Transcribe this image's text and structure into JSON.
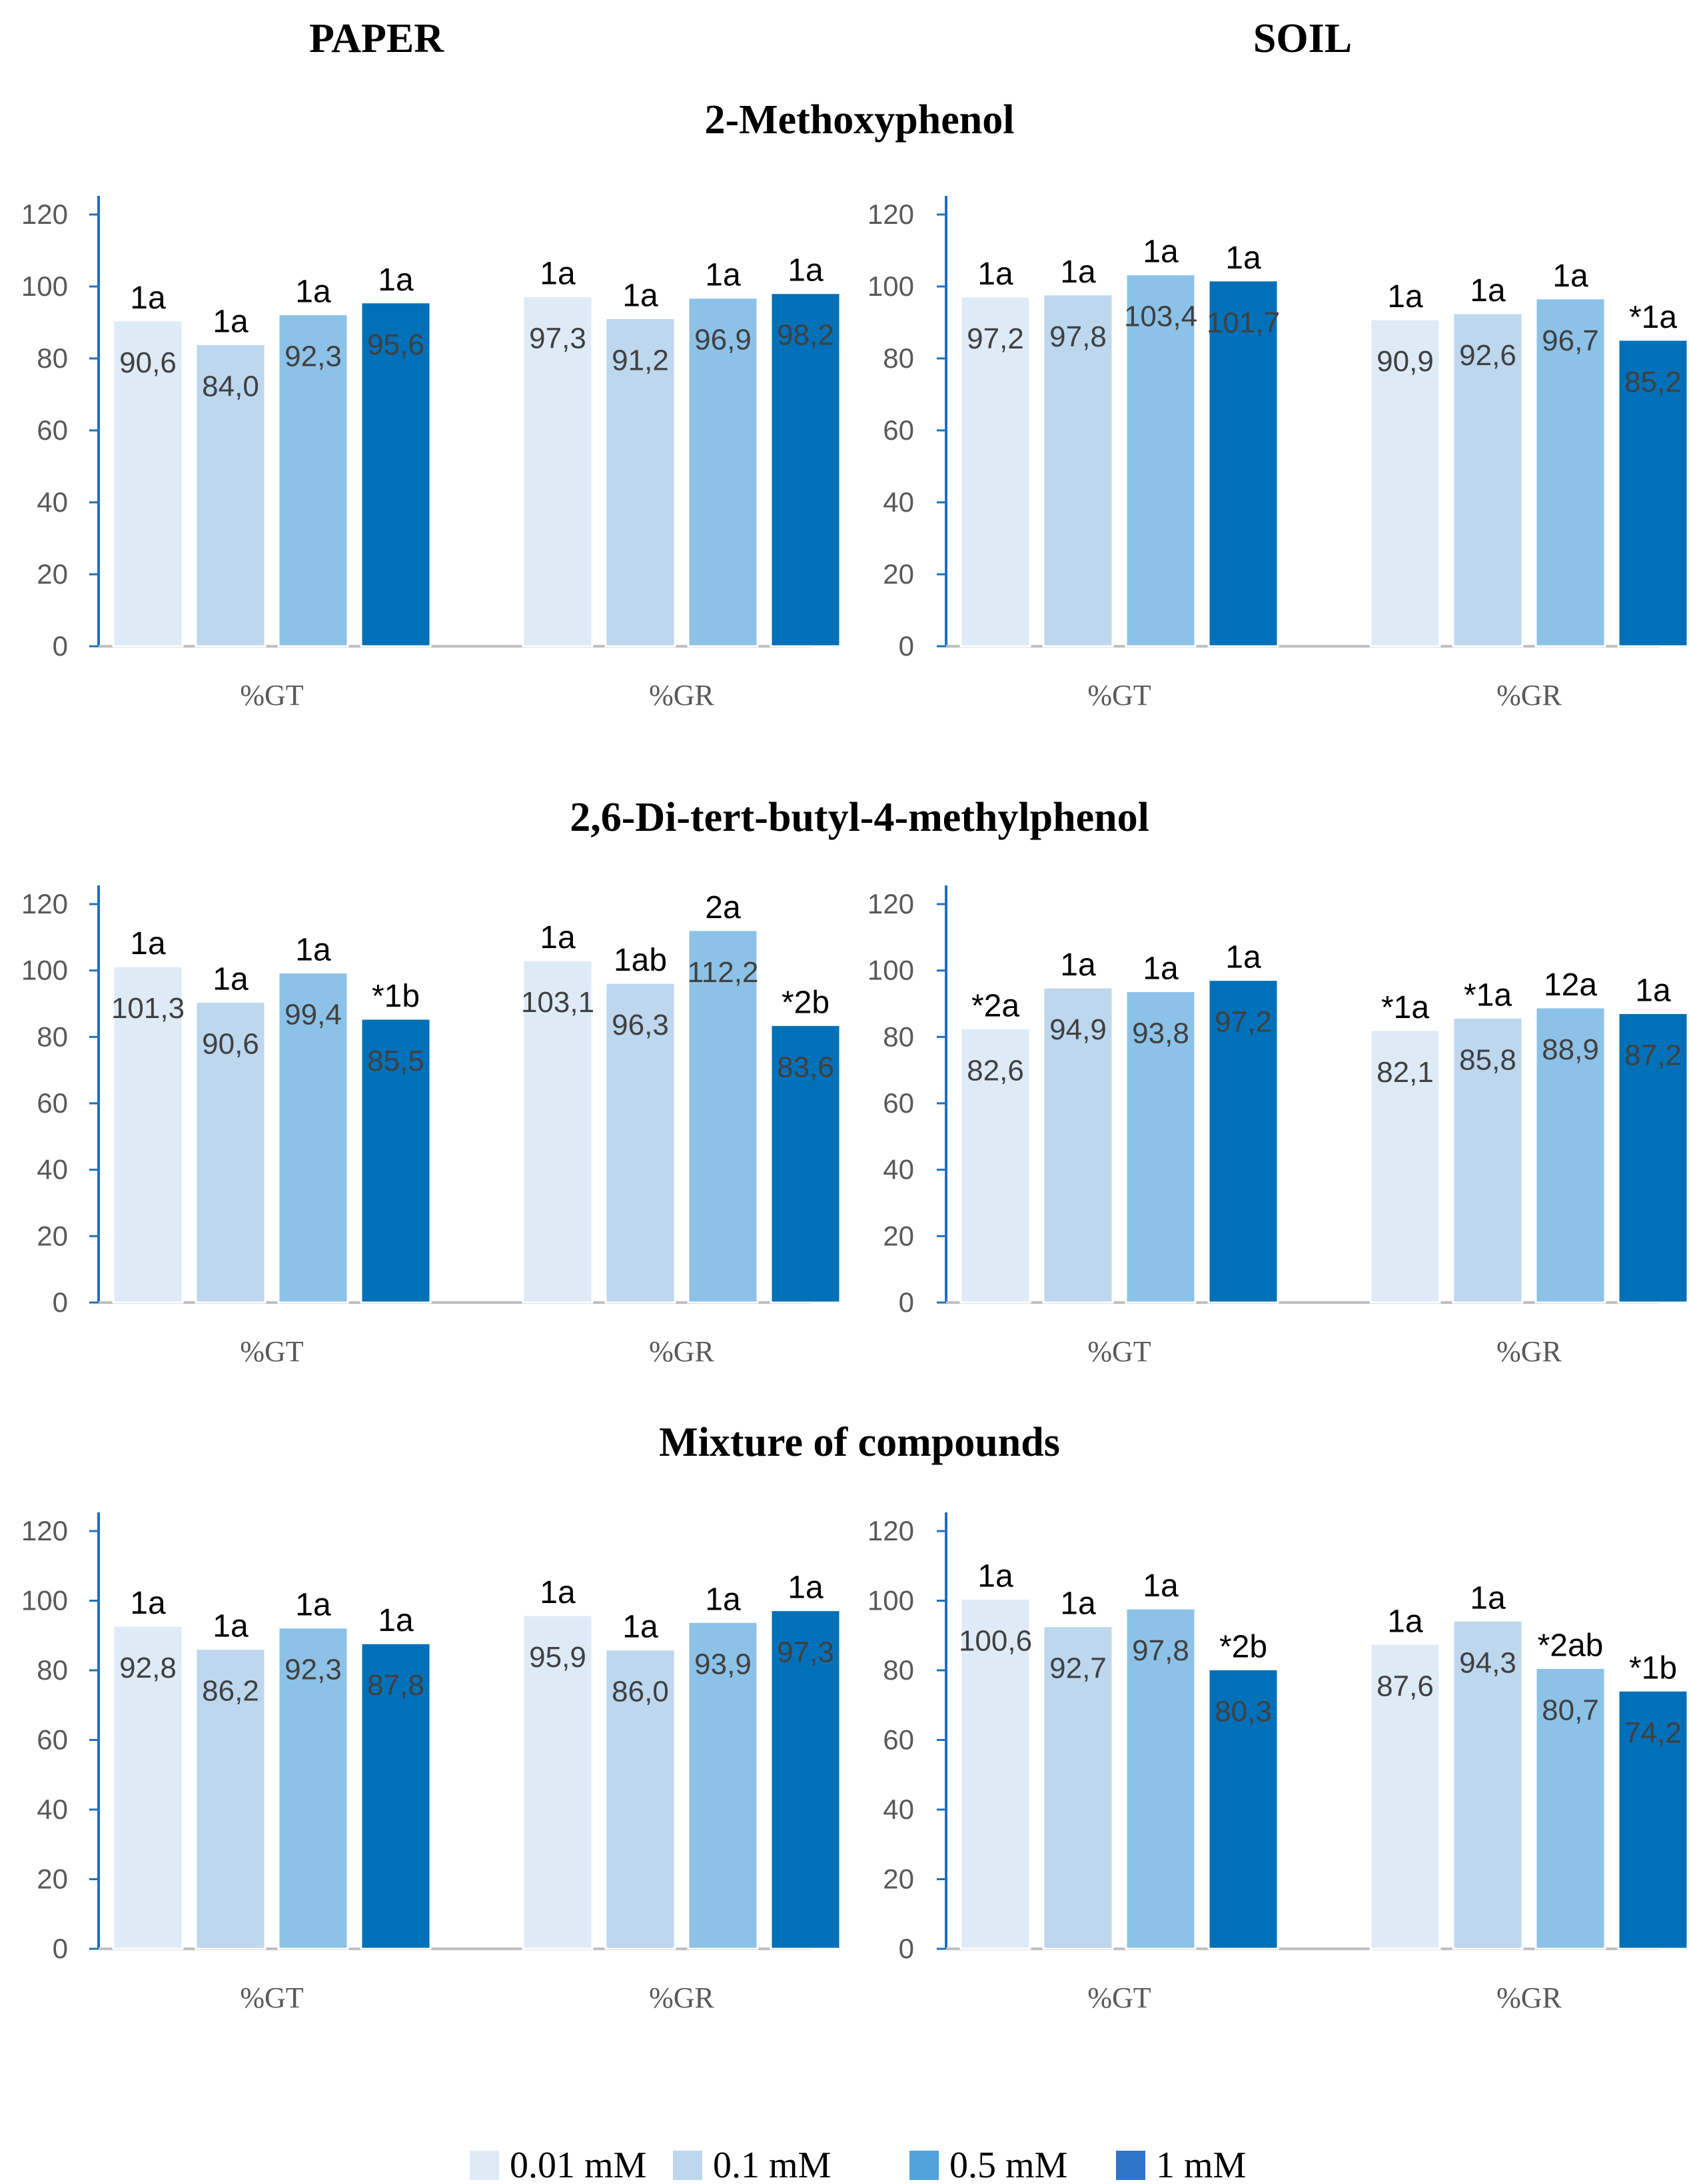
{
  "columns": {
    "left": "PAPER",
    "right": "SOIL"
  },
  "legend": [
    {
      "label": "0.01 mM",
      "color": "#deebf7"
    },
    {
      "label": "0.1 mM",
      "color": "#bdd7ee"
    },
    {
      "label": "0.5 mM",
      "color": "#4fa3da"
    },
    {
      "label": "1 mM",
      "color": "#2e75c9"
    }
  ],
  "bar_colors": [
    "#deebf7",
    "#bdd7ee",
    "#8cc2e8",
    "#0070b8"
  ],
  "chart_data": [
    {
      "type": "bar",
      "row_title": "2-Methoxyphenol",
      "panel": "PAPER",
      "categories": [
        "%GT",
        "%GR"
      ],
      "ylim": [
        0,
        120
      ],
      "yticks": [
        0,
        20,
        40,
        60,
        80,
        100,
        120
      ],
      "series": [
        {
          "name": "0.01 mM",
          "values": [
            90.6,
            97.3
          ],
          "labels": [
            "90,6",
            "97,3"
          ],
          "sig": [
            "1a",
            "1a"
          ]
        },
        {
          "name": "0.1 mM",
          "values": [
            84.0,
            91.2
          ],
          "labels": [
            "84,0",
            "91,2"
          ],
          "sig": [
            "1a",
            "1a"
          ]
        },
        {
          "name": "0.5 mM",
          "values": [
            92.3,
            96.9
          ],
          "labels": [
            "92,3",
            "96,9"
          ],
          "sig": [
            "1a",
            "1a"
          ]
        },
        {
          "name": "1 mM",
          "values": [
            95.6,
            98.2
          ],
          "labels": [
            "95,6",
            "98,2"
          ],
          "sig": [
            "1a",
            "1a"
          ]
        }
      ]
    },
    {
      "type": "bar",
      "row_title": "2-Methoxyphenol",
      "panel": "SOIL",
      "categories": [
        "%GT",
        "%GR"
      ],
      "ylim": [
        0,
        120
      ],
      "yticks": [
        0,
        20,
        40,
        60,
        80,
        100,
        120
      ],
      "series": [
        {
          "name": "0.01 mM",
          "values": [
            97.2,
            90.9
          ],
          "labels": [
            "97,2",
            "90,9"
          ],
          "sig": [
            "1a",
            "1a"
          ]
        },
        {
          "name": "0.1 mM",
          "values": [
            97.8,
            92.6
          ],
          "labels": [
            "97,8",
            "92,6"
          ],
          "sig": [
            "1a",
            "1a"
          ]
        },
        {
          "name": "0.5 mM",
          "values": [
            103.4,
            96.7
          ],
          "labels": [
            "103,4",
            "96,7"
          ],
          "sig": [
            "1a",
            "1a"
          ]
        },
        {
          "name": "1 mM",
          "values": [
            101.7,
            85.2
          ],
          "labels": [
            "101,7",
            "85,2"
          ],
          "sig": [
            "1a",
            "*1a"
          ]
        }
      ]
    },
    {
      "type": "bar",
      "row_title": "2,6-Di-tert-butyl-4-methylphenol",
      "panel": "PAPER",
      "categories": [
        "%GT",
        "%GR"
      ],
      "ylim": [
        0,
        120
      ],
      "yticks": [
        0,
        20,
        40,
        60,
        80,
        100,
        120
      ],
      "series": [
        {
          "name": "0.01 mM",
          "values": [
            101.3,
            103.1
          ],
          "labels": [
            "101,3",
            "103,1"
          ],
          "sig": [
            "1a",
            "1a"
          ]
        },
        {
          "name": "0.1 mM",
          "values": [
            90.6,
            96.3
          ],
          "labels": [
            "90,6",
            "96,3"
          ],
          "sig": [
            "1a",
            "1ab"
          ]
        },
        {
          "name": "0.5 mM",
          "values": [
            99.4,
            112.2
          ],
          "labels": [
            "99,4",
            "112,2"
          ],
          "sig": [
            "1a",
            "2a"
          ]
        },
        {
          "name": "1 mM",
          "values": [
            85.5,
            83.6
          ],
          "labels": [
            "85,5",
            "83,6"
          ],
          "sig": [
            "*1b",
            "*2b"
          ]
        }
      ]
    },
    {
      "type": "bar",
      "row_title": "2,6-Di-tert-butyl-4-methylphenol",
      "panel": "SOIL",
      "categories": [
        "%GT",
        "%GR"
      ],
      "ylim": [
        0,
        120
      ],
      "yticks": [
        0,
        20,
        40,
        60,
        80,
        100,
        120
      ],
      "series": [
        {
          "name": "0.01 mM",
          "values": [
            82.6,
            82.1
          ],
          "labels": [
            "82,6",
            "82,1"
          ],
          "sig": [
            "*2a",
            "*1a"
          ]
        },
        {
          "name": "0.1 mM",
          "values": [
            94.9,
            85.8
          ],
          "labels": [
            "94,9",
            "85,8"
          ],
          "sig": [
            "1a",
            "*1a"
          ]
        },
        {
          "name": "0.5 mM",
          "values": [
            93.8,
            88.9
          ],
          "labels": [
            "93,8",
            "88,9"
          ],
          "sig": [
            "1a",
            "12a"
          ]
        },
        {
          "name": "1 mM",
          "values": [
            97.2,
            87.2
          ],
          "labels": [
            "97,2",
            "87,2"
          ],
          "sig": [
            "1a",
            "1a"
          ]
        }
      ]
    },
    {
      "type": "bar",
      "row_title": "Mixture of compounds",
      "panel": "PAPER",
      "categories": [
        "%GT",
        "%GR"
      ],
      "ylim": [
        0,
        120
      ],
      "yticks": [
        0,
        20,
        40,
        60,
        80,
        100,
        120
      ],
      "series": [
        {
          "name": "0.01 mM",
          "values": [
            92.8,
            95.9
          ],
          "labels": [
            "92,8",
            "95,9"
          ],
          "sig": [
            "1a",
            "1a"
          ]
        },
        {
          "name": "0.1 mM",
          "values": [
            86.2,
            86.0
          ],
          "labels": [
            "86,2",
            "86,0"
          ],
          "sig": [
            "1a",
            "1a"
          ]
        },
        {
          "name": "0.5 mM",
          "values": [
            92.3,
            93.9
          ],
          "labels": [
            "92,3",
            "93,9"
          ],
          "sig": [
            "1a",
            "1a"
          ]
        },
        {
          "name": "1 mM",
          "values": [
            87.8,
            97.3
          ],
          "labels": [
            "87,8",
            "97,3"
          ],
          "sig": [
            "1a",
            "1a"
          ]
        }
      ]
    },
    {
      "type": "bar",
      "row_title": "Mixture of compounds",
      "panel": "SOIL",
      "categories": [
        "%GT",
        "%GR"
      ],
      "ylim": [
        0,
        120
      ],
      "yticks": [
        0,
        20,
        40,
        60,
        80,
        100,
        120
      ],
      "series": [
        {
          "name": "0.01 mM",
          "values": [
            100.6,
            87.6
          ],
          "labels": [
            "100,6",
            "87,6"
          ],
          "sig": [
            "1a",
            "1a"
          ]
        },
        {
          "name": "0.1 mM",
          "values": [
            92.7,
            94.3
          ],
          "labels": [
            "92,7",
            "94,3"
          ],
          "sig": [
            "1a",
            "1a"
          ]
        },
        {
          "name": "0.5 mM",
          "values": [
            97.8,
            80.7
          ],
          "labels": [
            "97,8",
            "80,7"
          ],
          "sig": [
            "1a",
            "*2ab"
          ]
        },
        {
          "name": "1 mM",
          "values": [
            80.3,
            74.2
          ],
          "labels": [
            "80,3",
            "74,2"
          ],
          "sig": [
            "*2b",
            "*1b"
          ]
        }
      ]
    }
  ]
}
